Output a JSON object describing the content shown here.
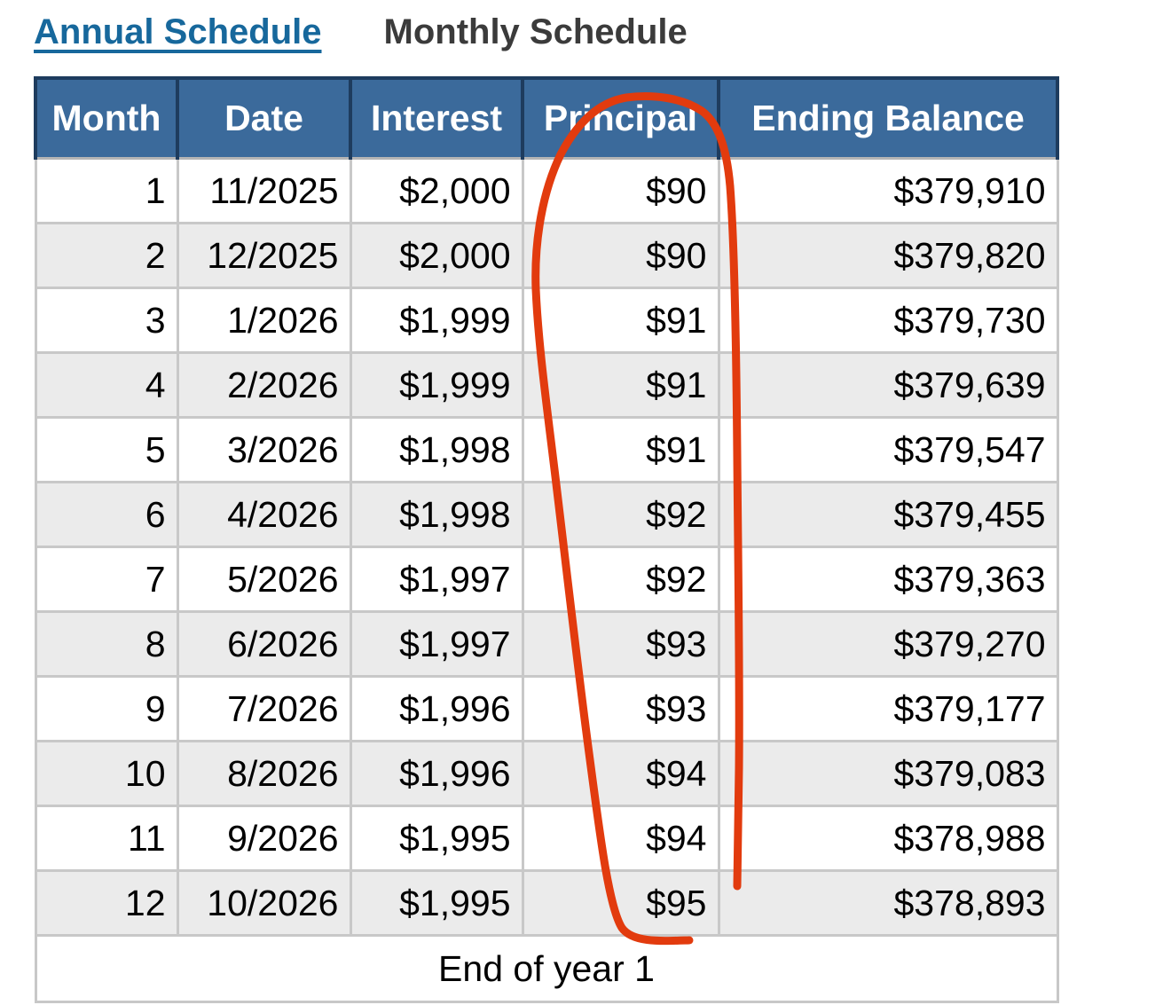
{
  "tabs": {
    "annual": "Annual Schedule",
    "monthly": "Monthly Schedule"
  },
  "table": {
    "headers": [
      "Month",
      "Date",
      "Interest",
      "Principal",
      "Ending Balance"
    ],
    "rows": [
      [
        "1",
        "11/2025",
        "$2,000",
        "$90",
        "$379,910"
      ],
      [
        "2",
        "12/2025",
        "$2,000",
        "$90",
        "$379,820"
      ],
      [
        "3",
        "1/2026",
        "$1,999",
        "$91",
        "$379,730"
      ],
      [
        "4",
        "2/2026",
        "$1,999",
        "$91",
        "$379,639"
      ],
      [
        "5",
        "3/2026",
        "$1,998",
        "$91",
        "$379,547"
      ],
      [
        "6",
        "4/2026",
        "$1,998",
        "$92",
        "$379,455"
      ],
      [
        "7",
        "5/2026",
        "$1,997",
        "$92",
        "$379,363"
      ],
      [
        "8",
        "6/2026",
        "$1,997",
        "$93",
        "$379,270"
      ],
      [
        "9",
        "7/2026",
        "$1,996",
        "$93",
        "$379,177"
      ],
      [
        "10",
        "8/2026",
        "$1,996",
        "$94",
        "$379,083"
      ],
      [
        "11",
        "9/2026",
        "$1,995",
        "$94",
        "$378,988"
      ],
      [
        "12",
        "10/2026",
        "$1,995",
        "$95",
        "$378,893"
      ]
    ],
    "footer": "End of year 1"
  },
  "annotation": {
    "description": "hand-drawn red loop circling the Principal column",
    "color": "#e23b0e"
  },
  "colors": {
    "header_bg": "#3b6a9b",
    "header_border": "#1e3c5e",
    "link_blue": "#17689c",
    "inactive_tab_text": "#3b3b3b",
    "row_alt_bg": "#ebebeb",
    "grid_border": "#c8c8c8"
  }
}
